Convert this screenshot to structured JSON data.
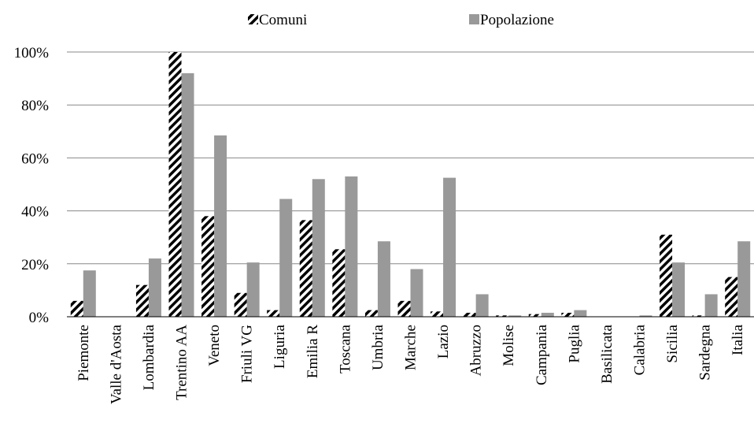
{
  "chart_data": {
    "type": "bar",
    "categories": [
      "Piemonte",
      "Valle d'Aosta",
      "Lombardia",
      "Trentino AA",
      "Veneto",
      "Friuli VG",
      "Liguria",
      "Emilia R",
      "Toscana",
      "Umbria",
      "Marche",
      "Lazio",
      "Abruzzo",
      "Molise",
      "Campania",
      "Puglia",
      "Basilicata",
      "Calabria",
      "Sicilia",
      "Sardegna",
      "Italia"
    ],
    "series": [
      {
        "name": "Comuni",
        "color": "#000000",
        "pattern": "hatch",
        "values": [
          6,
          0,
          12,
          100,
          38,
          9,
          2.5,
          36.5,
          25.5,
          2.5,
          6,
          2,
          1.5,
          0.5,
          1,
          1.5,
          0,
          0,
          31,
          0.5,
          15
        ]
      },
      {
        "name": "Popolazione",
        "color": "#999999",
        "values": [
          17.5,
          0,
          22,
          92,
          68.5,
          20.5,
          44.5,
          52,
          53,
          28.5,
          18,
          52.5,
          8.5,
          0.5,
          1.5,
          2.5,
          0,
          0.5,
          20.5,
          8.5,
          28.5
        ]
      }
    ],
    "ylim": [
      0,
      100
    ],
    "yticks": [
      {
        "value": 0,
        "label": "0%"
      },
      {
        "value": 20,
        "label": "20%"
      },
      {
        "value": 40,
        "label": "40%"
      },
      {
        "value": 60,
        "label": "60%"
      },
      {
        "value": 80,
        "label": "80%"
      },
      {
        "value": 100,
        "label": "100%"
      }
    ],
    "grid": true,
    "legend": "top"
  }
}
